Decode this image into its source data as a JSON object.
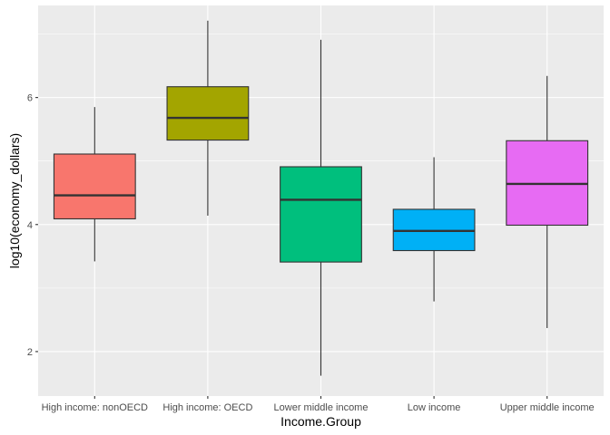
{
  "chart_data": {
    "type": "boxplot",
    "xlabel": "Income.Group",
    "ylabel": "log10(economy_dollars)",
    "ylim": [
      1.3,
      7.45
    ],
    "yticks": [
      2,
      4,
      6
    ],
    "grid": true,
    "legend": "none",
    "panel_background": "#ebebeb",
    "categories": [
      "High income: nonOECD",
      "High income: OECD",
      "Lower middle income",
      "Low income",
      "Upper middle income"
    ],
    "boxes": [
      {
        "category": "High income: nonOECD",
        "fill": "#f8766d",
        "whisker_low": 3.42,
        "q1": 4.09,
        "median": 4.46,
        "q3": 5.11,
        "whisker_high": 5.85
      },
      {
        "category": "High income: OECD",
        "fill": "#a3a500",
        "whisker_low": 4.14,
        "q1": 5.33,
        "median": 5.68,
        "q3": 6.17,
        "whisker_high": 7.21
      },
      {
        "category": "Lower middle income",
        "fill": "#00bf7d",
        "whisker_low": 1.62,
        "q1": 3.41,
        "median": 4.39,
        "q3": 4.91,
        "whisker_high": 6.91
      },
      {
        "category": "Low income",
        "fill": "#00b0f6",
        "whisker_low": 2.79,
        "q1": 3.59,
        "median": 3.9,
        "q3": 4.24,
        "whisker_high": 5.06
      },
      {
        "category": "Upper middle income",
        "fill": "#e76bf3",
        "whisker_low": 2.37,
        "q1": 3.99,
        "median": 4.64,
        "q3": 5.32,
        "whisker_high": 6.34
      }
    ]
  }
}
